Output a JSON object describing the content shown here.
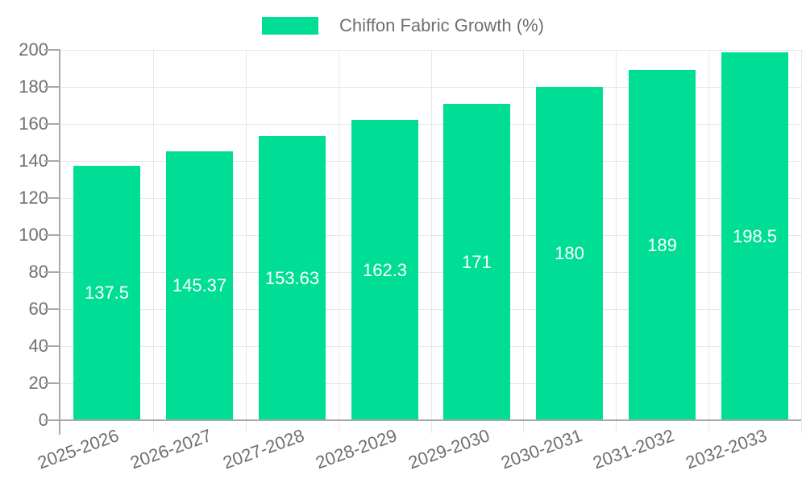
{
  "chart_data": {
    "type": "bar",
    "title": "",
    "legend": "Chiffon Fabric Growth (%)",
    "legend_position": "top-center",
    "categories": [
      "2025-2026",
      "2026-2027",
      "2027-2028",
      "2028-2029",
      "2029-2030",
      "2030-2031",
      "2031-2032",
      "2032-2033"
    ],
    "values": [
      137.5,
      145.37,
      153.63,
      162.3,
      171,
      180,
      189,
      198.5
    ],
    "value_labels": [
      "137.5",
      "145.37",
      "153.63",
      "162.3",
      "171",
      "180",
      "189",
      "198.5"
    ],
    "ylim": [
      0,
      200
    ],
    "ytick_step": 20,
    "grid": true,
    "xlabel": "",
    "ylabel": "",
    "colors": {
      "bar": "#00de95",
      "grid": "#e7e7e7",
      "axis": "#a9a9a9",
      "text": "#6f6f6f",
      "value_label": "#ffffff",
      "background": "#ffffff"
    }
  }
}
